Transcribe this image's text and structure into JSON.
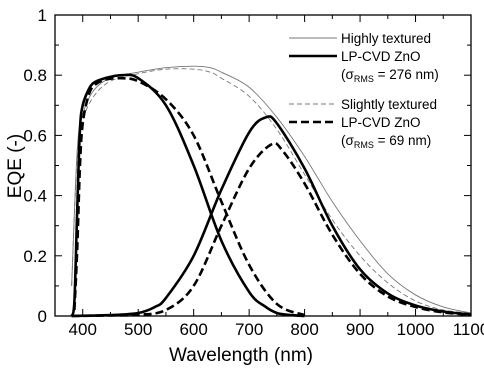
{
  "chart_data": {
    "type": "line",
    "xlabel": "Wavelength (nm)",
    "ylabel": "EQE (-)",
    "xlim": [
      350,
      1100
    ],
    "ylim": [
      0,
      1
    ],
    "x_ticks": [
      "400",
      "500",
      "600",
      "700",
      "800",
      "900",
      "1000",
      "1100"
    ],
    "y_ticks": [
      "0",
      "0.2",
      "0.4",
      "0.6",
      "0.8",
      "1"
    ],
    "grid": false,
    "legend": {
      "placement": "top-right",
      "entries": [
        {
          "line1": "Highly textured",
          "line2": "LP-CVD ZnO",
          "sigma_prefix": "(σ",
          "sigma_sub": "RMS",
          "sigma_suffix": " = 276 nm)"
        },
        {
          "line1": "Slightly textured",
          "line2": "LP-CVD ZnO",
          "sigma_prefix": "(σ",
          "sigma_sub": "RMS",
          "sigma_suffix": " = 69 nm)"
        }
      ]
    },
    "series": [
      {
        "id": "highly-total",
        "style": "thin-solid",
        "x": [
          380,
          390,
          400,
          420,
          450,
          500,
          550,
          600,
          630,
          650,
          700,
          750,
          800,
          850,
          900,
          950,
          1000,
          1050,
          1100
        ],
        "y": [
          0.1,
          0.55,
          0.67,
          0.75,
          0.79,
          0.81,
          0.825,
          0.83,
          0.825,
          0.81,
          0.76,
          0.66,
          0.53,
          0.38,
          0.25,
          0.14,
          0.07,
          0.03,
          0.01
        ]
      },
      {
        "id": "slightly-total",
        "style": "thin-dashed",
        "x": [
          380,
          390,
          400,
          420,
          450,
          500,
          550,
          600,
          630,
          650,
          700,
          750,
          800,
          850,
          900,
          950,
          1000,
          1050,
          1100
        ],
        "y": [
          0.1,
          0.53,
          0.65,
          0.73,
          0.78,
          0.805,
          0.82,
          0.82,
          0.81,
          0.79,
          0.73,
          0.62,
          0.47,
          0.32,
          0.2,
          0.11,
          0.05,
          0.02,
          0.01
        ]
      },
      {
        "id": "highly-top",
        "style": "thick-solid",
        "x": [
          380,
          385,
          390,
          395,
          400,
          410,
          420,
          440,
          470,
          500,
          550,
          600,
          650,
          700,
          730,
          750,
          770,
          800
        ],
        "y": [
          0,
          0.05,
          0.35,
          0.62,
          0.7,
          0.75,
          0.775,
          0.79,
          0.8,
          0.79,
          0.7,
          0.5,
          0.25,
          0.08,
          0.03,
          0.01,
          0.004,
          0
        ]
      },
      {
        "id": "slightly-top",
        "style": "thick-dashed",
        "x": [
          385,
          390,
          395,
          400,
          410,
          420,
          440,
          470,
          500,
          550,
          600,
          650,
          700,
          750,
          800
        ],
        "y": [
          0.02,
          0.22,
          0.5,
          0.64,
          0.73,
          0.765,
          0.785,
          0.79,
          0.78,
          0.72,
          0.6,
          0.38,
          0.17,
          0.04,
          0.003
        ]
      },
      {
        "id": "highly-bottom",
        "style": "thick-solid",
        "x": [
          380,
          450,
          500,
          530,
          550,
          600,
          650,
          700,
          730,
          750,
          800,
          850,
          900,
          950,
          1000,
          1050,
          1100
        ],
        "y": [
          0,
          0.003,
          0.01,
          0.03,
          0.06,
          0.2,
          0.42,
          0.61,
          0.66,
          0.64,
          0.49,
          0.3,
          0.155,
          0.075,
          0.035,
          0.015,
          0.005
        ]
      },
      {
        "id": "slightly-bottom",
        "style": "thick-dashed",
        "x": [
          380,
          450,
          500,
          550,
          600,
          650,
          700,
          740,
          760,
          800,
          850,
          900,
          950,
          1000,
          1050,
          1100
        ],
        "y": [
          0,
          0.002,
          0.004,
          0.02,
          0.1,
          0.3,
          0.49,
          0.57,
          0.55,
          0.44,
          0.27,
          0.14,
          0.065,
          0.03,
          0.012,
          0.004
        ]
      }
    ]
  }
}
